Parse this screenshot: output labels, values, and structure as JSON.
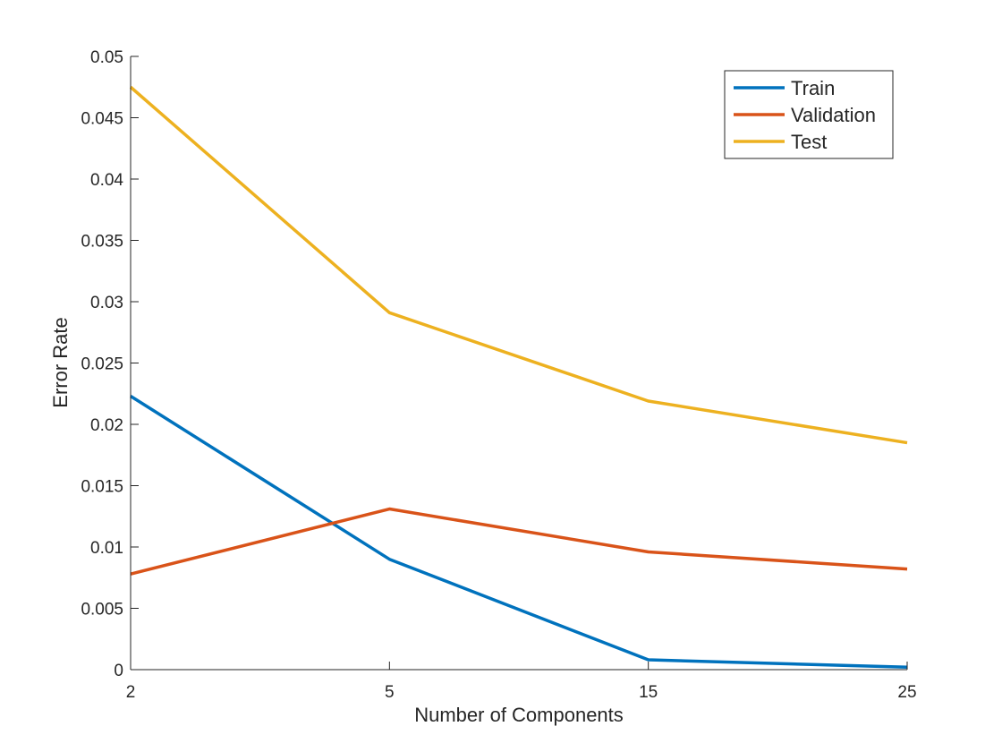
{
  "chart_data": {
    "type": "line",
    "categories": [
      "2",
      "5",
      "15",
      "25"
    ],
    "series": [
      {
        "name": "Train",
        "values": [
          0.0223,
          0.009,
          0.0008,
          0.0002
        ],
        "color": "#0072BD"
      },
      {
        "name": "Validation",
        "values": [
          0.0078,
          0.0131,
          0.0096,
          0.0082
        ],
        "color": "#D95319"
      },
      {
        "name": "Test",
        "values": [
          0.0475,
          0.0291,
          0.0219,
          0.0185
        ],
        "color": "#EDB120"
      }
    ],
    "xlabel": "Number of Components",
    "ylabel": "Error Rate",
    "ylim": [
      0,
      0.05
    ],
    "yticks": [
      "0",
      "0.005",
      "0.01",
      "0.015",
      "0.02",
      "0.025",
      "0.03",
      "0.035",
      "0.04",
      "0.045",
      "0.05"
    ],
    "grid": false,
    "legend_position": "top-right"
  }
}
